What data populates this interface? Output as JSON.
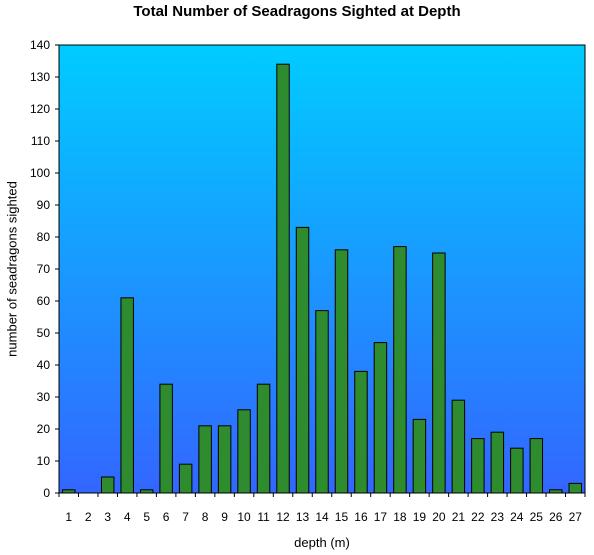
{
  "chart_data": {
    "type": "bar",
    "title": "Total Number of Seadragons Sighted at Depth",
    "xlabel": "depth (m)",
    "ylabel": "number of seadragons sighted",
    "categories": [
      "1",
      "2",
      "3",
      "4",
      "5",
      "6",
      "7",
      "8",
      "9",
      "10",
      "11",
      "12",
      "13",
      "14",
      "15",
      "16",
      "17",
      "18",
      "19",
      "20",
      "21",
      "22",
      "23",
      "24",
      "25",
      "26",
      "27"
    ],
    "values": [
      1,
      0,
      5,
      61,
      1,
      34,
      9,
      21,
      21,
      26,
      34,
      134,
      83,
      57,
      76,
      38,
      47,
      77,
      23,
      75,
      29,
      17,
      19,
      14,
      17,
      1,
      3
    ],
    "ylim": [
      0,
      140
    ],
    "yticks": [
      0,
      10,
      20,
      30,
      40,
      50,
      60,
      70,
      80,
      90,
      100,
      110,
      120,
      130,
      140
    ],
    "grid": false,
    "legend": "none",
    "colors": {
      "bar_fill": "#2e8b2e",
      "bar_stroke": "#000000",
      "plot_bg_top": "#00ccff",
      "plot_bg_bottom": "#3366ff"
    }
  }
}
